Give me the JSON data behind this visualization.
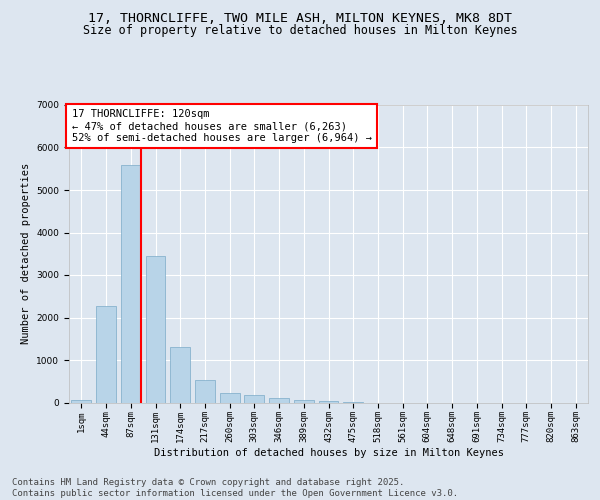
{
  "title_line1": "17, THORNCLIFFE, TWO MILE ASH, MILTON KEYNES, MK8 8DT",
  "title_line2": "Size of property relative to detached houses in Milton Keynes",
  "xlabel": "Distribution of detached houses by size in Milton Keynes",
  "ylabel": "Number of detached properties",
  "categories": [
    "1sqm",
    "44sqm",
    "87sqm",
    "131sqm",
    "174sqm",
    "217sqm",
    "260sqm",
    "303sqm",
    "346sqm",
    "389sqm",
    "432sqm",
    "475sqm",
    "518sqm",
    "561sqm",
    "604sqm",
    "648sqm",
    "691sqm",
    "734sqm",
    "777sqm",
    "820sqm",
    "863sqm"
  ],
  "values": [
    70,
    2280,
    5580,
    3450,
    1310,
    520,
    215,
    175,
    100,
    60,
    30,
    5,
    0,
    0,
    0,
    0,
    0,
    0,
    0,
    0,
    0
  ],
  "bar_color": "#b8d4e8",
  "bar_edgecolor": "#7aaac8",
  "vline_color": "red",
  "vline_x_index": 2.42,
  "annotation_text": "17 THORNCLIFFE: 120sqm\n← 47% of detached houses are smaller (6,263)\n52% of semi-detached houses are larger (6,964) →",
  "ylim": [
    0,
    7000
  ],
  "yticks": [
    0,
    1000,
    2000,
    3000,
    4000,
    5000,
    6000,
    7000
  ],
  "background_color": "#dde6f0",
  "plot_bg_color": "#dde6f0",
  "grid_color": "white",
  "footer_text": "Contains HM Land Registry data © Crown copyright and database right 2025.\nContains public sector information licensed under the Open Government Licence v3.0.",
  "title_fontsize": 9.5,
  "subtitle_fontsize": 8.5,
  "axis_label_fontsize": 7.5,
  "tick_fontsize": 6.5,
  "annotation_fontsize": 7.5,
  "footer_fontsize": 6.5
}
